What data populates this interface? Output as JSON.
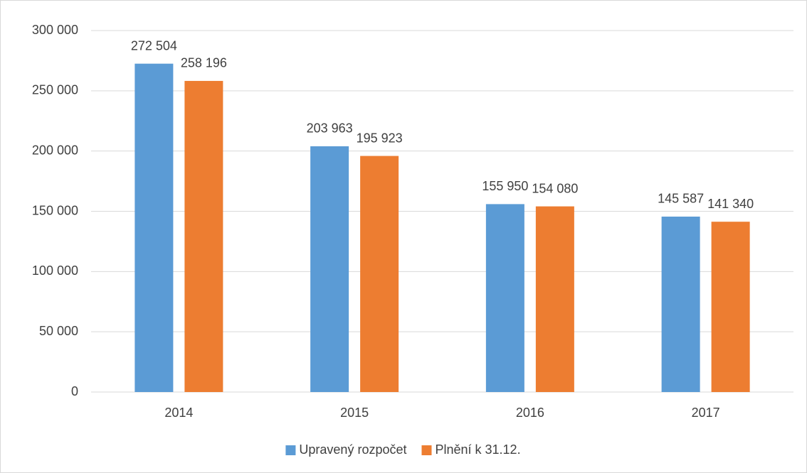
{
  "chart_data": {
    "type": "bar",
    "categories": [
      "2014",
      "2015",
      "2016",
      "2017"
    ],
    "series": [
      {
        "name": "Upravený rozpočet",
        "color": "#5b9bd5",
        "values": [
          272504,
          203963,
          155950,
          145587
        ],
        "value_labels": [
          "272 504",
          "203 963",
          "155 950",
          "145 587"
        ]
      },
      {
        "name": "Plnění k 31.12.",
        "color": "#ed7d31",
        "values": [
          258196,
          195923,
          154080,
          141340
        ],
        "value_labels": [
          "258 196",
          "195 923",
          "154 080",
          "141 340"
        ]
      }
    ],
    "ylim": [
      0,
      300000
    ],
    "yticks": [
      {
        "value": 0,
        "label": "0"
      },
      {
        "value": 50000,
        "label": "50 000"
      },
      {
        "value": 100000,
        "label": "100 000"
      },
      {
        "value": 150000,
        "label": "150 000"
      },
      {
        "value": 200000,
        "label": "200 000"
      },
      {
        "value": 250000,
        "label": "250 000"
      },
      {
        "value": 300000,
        "label": "300 000"
      }
    ],
    "grid": true,
    "legend": "bottom"
  }
}
